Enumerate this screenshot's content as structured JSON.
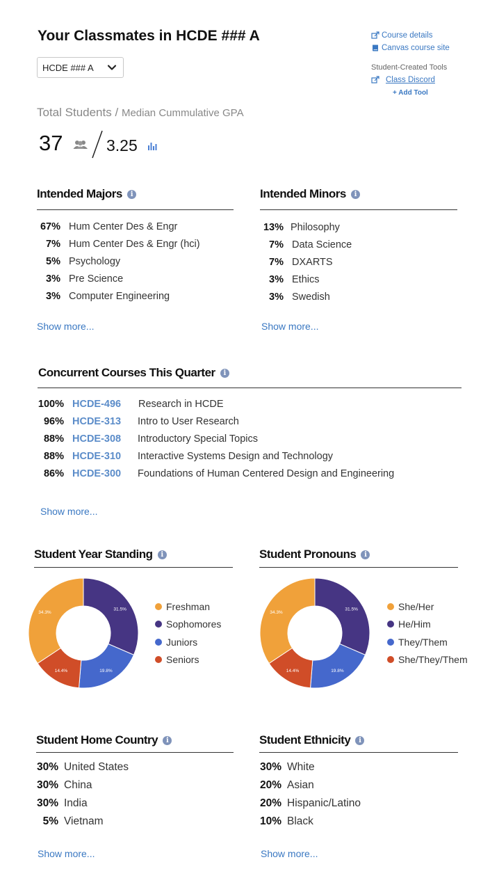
{
  "header": {
    "title": "Your Classmates in HCDE ### A",
    "section_select_value": "HCDE ### A"
  },
  "tools": {
    "course_details": "Course details",
    "canvas_site": "Canvas course site",
    "student_tools_heading": "Student-Created Tools",
    "class_discord": "Class Discord",
    "add_tool": "+ Add Tool"
  },
  "stats": {
    "total_label": "Total Students",
    "separator": "/",
    "gpa_label": "Median Cummulative GPA",
    "total_students": "37",
    "median_gpa": "3.25"
  },
  "majors": {
    "title": "Intended Majors",
    "items": [
      {
        "pct": "67%",
        "name": "Hum Center Des & Engr"
      },
      {
        "pct": "7%",
        "name": "Hum Center Des & Engr (hci)"
      },
      {
        "pct": "5%",
        "name": "Psychology"
      },
      {
        "pct": "3%",
        "name": "Pre Science"
      },
      {
        "pct": "3%",
        "name": "Computer Engineering"
      }
    ],
    "show_more": "Show more..."
  },
  "minors": {
    "title": "Intended Minors",
    "items": [
      {
        "pct": "13%",
        "name": "Philosophy"
      },
      {
        "pct": "7%",
        "name": "Data Science"
      },
      {
        "pct": "7%",
        "name": "DXARTS"
      },
      {
        "pct": "3%",
        "name": "Ethics"
      },
      {
        "pct": "3%",
        "name": "Swedish"
      }
    ],
    "show_more": "Show more..."
  },
  "courses": {
    "title": "Concurrent Courses This Quarter",
    "items": [
      {
        "pct": "100%",
        "code": "HCDE-496",
        "name": "Research in HCDE"
      },
      {
        "pct": "96%",
        "code": "HCDE-313",
        "name": "Intro to User Research"
      },
      {
        "pct": "88%",
        "code": "HCDE-308",
        "name": "Introductory Special Topics"
      },
      {
        "pct": "88%",
        "code": "HCDE-310",
        "name": "Interactive Systems Design and Technology"
      },
      {
        "pct": "86%",
        "code": "HCDE-300",
        "name": "Foundations of Human Centered Design and Engineering"
      }
    ],
    "show_more": "Show more..."
  },
  "colors": {
    "orange": "#f0a13a",
    "purple": "#463583",
    "blue": "#4568cc",
    "red": "#d04d28"
  },
  "charts_meta": {
    "year_title": "Student Year Standing",
    "pronoun_title": "Student Pronouns"
  },
  "chart_data": [
    {
      "type": "pie",
      "title": "Student Year Standing",
      "donut": true,
      "categories": [
        "Freshman",
        "Sophomores",
        "Juniors",
        "Seniors"
      ],
      "values": [
        34.3,
        31.5,
        19.8,
        14.4
      ],
      "labels": [
        "34.3%",
        "31.5%",
        "19.8%",
        "14.4%"
      ],
      "colors": [
        "#f0a13a",
        "#463583",
        "#4568cc",
        "#d04d28"
      ],
      "legend": "right"
    },
    {
      "type": "pie",
      "title": "Student Pronouns",
      "donut": true,
      "categories": [
        "She/Her",
        "He/Him",
        "They/Them",
        "She/They/Them"
      ],
      "values": [
        34.3,
        31.5,
        19.8,
        14.4
      ],
      "labels": [
        "34.3%",
        "31.5%",
        "19.8%",
        "14.4%"
      ],
      "colors": [
        "#f0a13a",
        "#463583",
        "#4568cc",
        "#d04d28"
      ],
      "legend": "right"
    }
  ],
  "country": {
    "title": "Student Home Country",
    "items": [
      {
        "pct": "30%",
        "name": "United States"
      },
      {
        "pct": "30%",
        "name": "China"
      },
      {
        "pct": "30%",
        "name": "India"
      },
      {
        "pct": "5%",
        "name": "Vietnam"
      }
    ],
    "show_more": "Show more..."
  },
  "ethnicity": {
    "title": "Student Ethnicity",
    "items": [
      {
        "pct": "30%",
        "name": "White"
      },
      {
        "pct": "20%",
        "name": "Asian"
      },
      {
        "pct": "20%",
        "name": "Hispanic/Latino"
      },
      {
        "pct": "10%",
        "name": "Black"
      }
    ],
    "show_more": "Show more..."
  }
}
